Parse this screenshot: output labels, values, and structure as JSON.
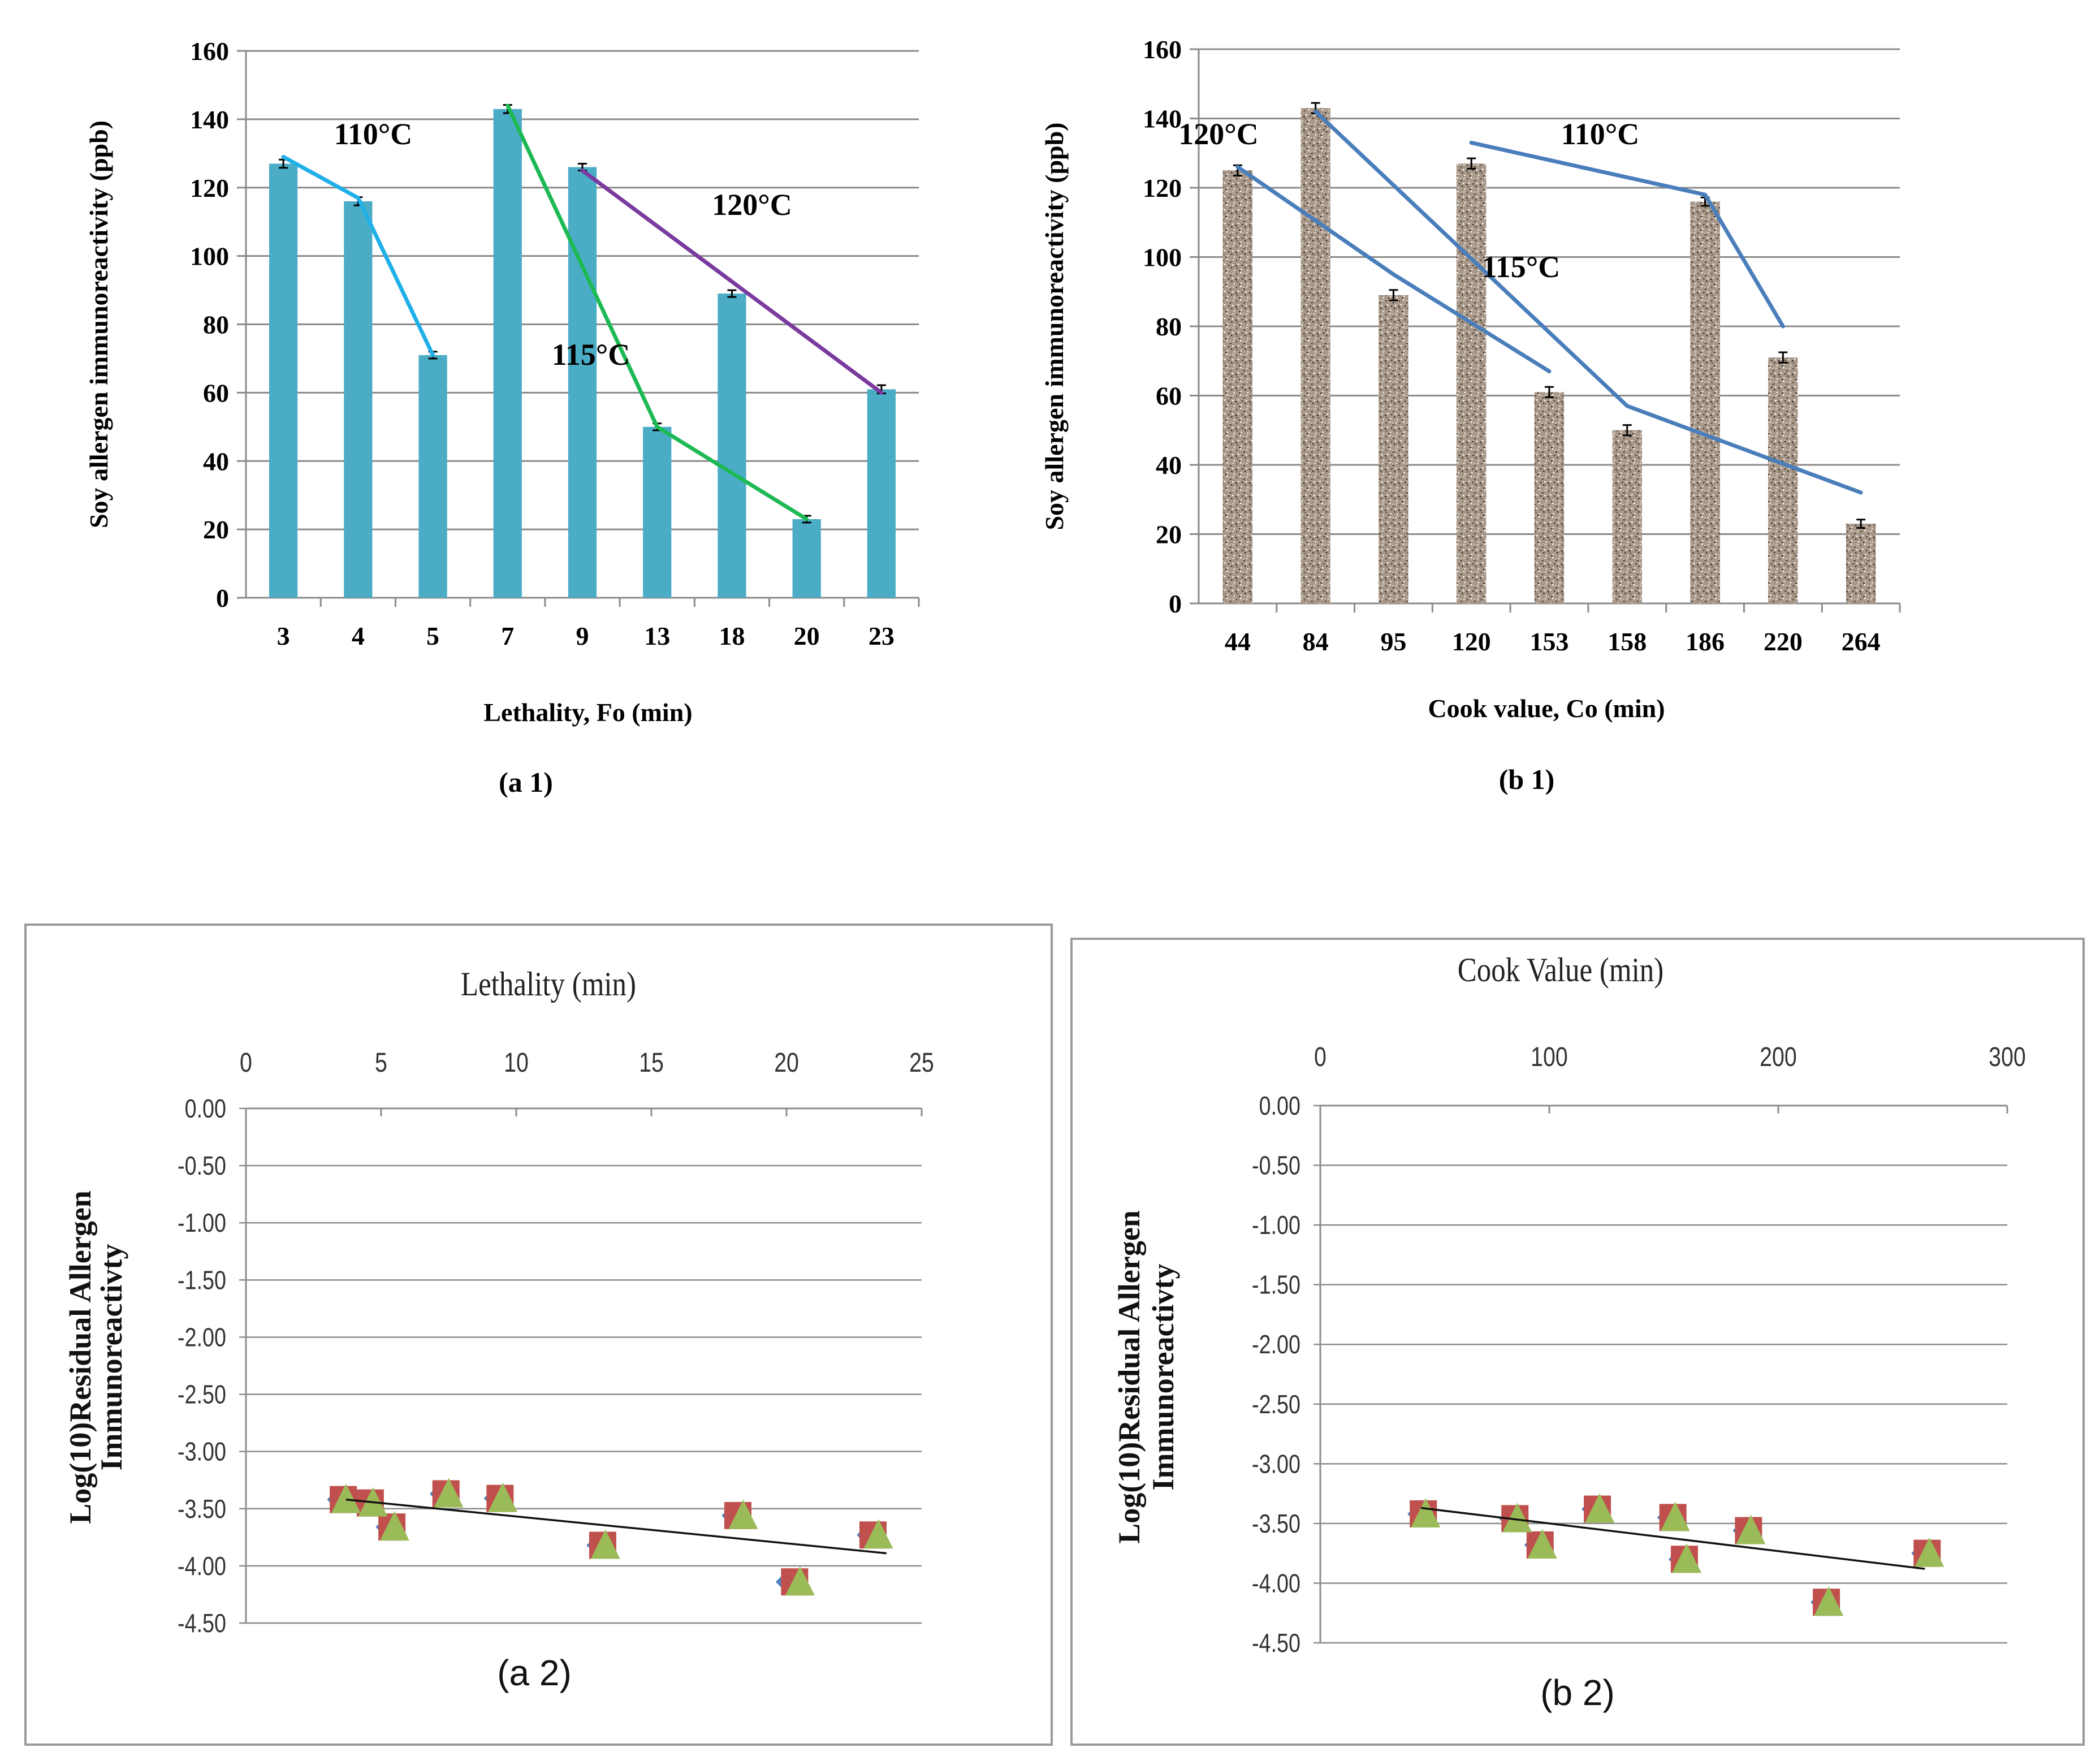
{
  "chart_data": [
    {
      "id": "a1",
      "type": "bar",
      "caption": "(a 1)",
      "xlabel": "Lethality, Fo (min)",
      "ylabel": "Soy allergen immunoreactivity (ppb)",
      "ylim": [
        0,
        160
      ],
      "yticks": [
        0,
        20,
        40,
        60,
        80,
        100,
        120,
        140,
        160
      ],
      "grid": true,
      "bar_color": "#4bacc6",
      "categories": [
        "3",
        "4",
        "5",
        "7",
        "9",
        "13",
        "18",
        "20",
        "23"
      ],
      "values": [
        127,
        116,
        71,
        143,
        126,
        50,
        89,
        23,
        61
      ],
      "errors": [
        1.2,
        1.2,
        1.0,
        1.2,
        1.0,
        1.0,
        1.0,
        1.0,
        1.2
      ],
      "trend_lines": [
        {
          "label": "110°C",
          "color": "#1fb0e8",
          "points": [
            [
              "3",
              129
            ],
            [
              "4",
              117
            ],
            [
              "5",
              71
            ]
          ]
        },
        {
          "label": "115°C",
          "color": "#1db954",
          "points": [
            [
              "7",
              144
            ],
            [
              "13",
              50
            ],
            [
              "20",
              23
            ]
          ]
        },
        {
          "label": "120°C",
          "color": "#7a3a9e",
          "points": [
            [
              "9",
              125
            ],
            [
              "23",
              60
            ]
          ]
        }
      ],
      "annotations": [
        "110°C",
        "120°C",
        "115°C"
      ]
    },
    {
      "id": "b1",
      "type": "bar",
      "caption": "(b 1)",
      "xlabel": "Cook value, Co (min)",
      "ylabel": "Soy allergen immunoreactivity (ppb)",
      "ylim": [
        0,
        160
      ],
      "yticks": [
        0,
        20,
        40,
        60,
        80,
        100,
        120,
        140,
        160
      ],
      "grid": true,
      "bar_color": "#a8988a",
      "categories": [
        "44",
        "84",
        "95",
        "120",
        "153",
        "158",
        "186",
        "220",
        "264"
      ],
      "values": [
        125,
        143,
        89,
        127,
        61,
        50,
        116,
        71,
        23
      ],
      "errors": [
        1.5,
        1.5,
        1.5,
        1.5,
        1.5,
        1.5,
        1.2,
        1.5,
        1.2
      ],
      "trend_lines": [
        {
          "label": "120°C",
          "color": "#4a7ebb",
          "points": [
            [
              "44",
              126
            ],
            [
              "95",
              95
            ],
            [
              "153",
              67
            ]
          ]
        },
        {
          "label": "115°C",
          "color": "#4a7ebb",
          "points": [
            [
              "84",
              142
            ],
            [
              "158",
              57
            ],
            [
              "264",
              32
            ]
          ]
        },
        {
          "label": "110°C",
          "color": "#4a7ebb",
          "points": [
            [
              "120",
              133
            ],
            [
              "186",
              118
            ],
            [
              "220",
              80
            ]
          ]
        }
      ],
      "annotations": [
        "120°C",
        "110°C",
        "115°C"
      ]
    },
    {
      "id": "a2",
      "type": "scatter",
      "caption": "(a 2)",
      "xlabel": "Lethality (min)",
      "ylabel_lines": [
        "Log(10)Residual Allergen",
        "Immunoreactivty"
      ],
      "xlim": [
        0,
        25
      ],
      "xticks": [
        0,
        5,
        10,
        15,
        20,
        25
      ],
      "ylim": [
        -4.5,
        0
      ],
      "yticks": [
        "0.00",
        "-0.50",
        "-1.00",
        "-1.50",
        "-2.00",
        "-2.50",
        "-3.00",
        "-3.50",
        "-4.00",
        "-4.50"
      ],
      "grid": true,
      "series": [
        {
          "name": "blue",
          "marker": "diamond",
          "color": "#4f81bd",
          "points": [
            [
              3.5,
              -3.42
            ],
            [
              4.5,
              -3.45
            ],
            [
              5.3,
              -3.66
            ],
            [
              7.3,
              -3.37
            ],
            [
              9.3,
              -3.41
            ],
            [
              13.1,
              -3.82
            ],
            [
              18.1,
              -3.56
            ],
            [
              20.1,
              -4.14
            ],
            [
              23.1,
              -3.73
            ]
          ]
        },
        {
          "name": "red",
          "marker": "square",
          "color": "#c0504d",
          "points": [
            [
              3.6,
              -3.42
            ],
            [
              4.6,
              -3.45
            ],
            [
              5.4,
              -3.66
            ],
            [
              7.4,
              -3.37
            ],
            [
              9.4,
              -3.41
            ],
            [
              13.2,
              -3.82
            ],
            [
              18.2,
              -3.56
            ],
            [
              20.3,
              -4.14
            ],
            [
              23.2,
              -3.73
            ]
          ]
        },
        {
          "name": "green",
          "marker": "triangle",
          "color": "#9bbb59",
          "points": [
            [
              3.7,
              -3.42
            ],
            [
              4.7,
              -3.45
            ],
            [
              5.5,
              -3.66
            ],
            [
              7.5,
              -3.37
            ],
            [
              9.5,
              -3.41
            ],
            [
              13.3,
              -3.82
            ],
            [
              18.4,
              -3.56
            ],
            [
              20.5,
              -4.14
            ],
            [
              23.4,
              -3.73
            ]
          ]
        }
      ],
      "trend": [
        [
          3.7,
          -3.42
        ],
        [
          23.7,
          -3.89
        ]
      ]
    },
    {
      "id": "b2",
      "type": "scatter",
      "caption": "(b 2)",
      "xlabel": "Cook Value (min)",
      "ylabel_lines": [
        "Log(10)Residual Allergen",
        "Immunoreactivty"
      ],
      "xlim": [
        0,
        300
      ],
      "xticks": [
        0,
        100,
        200,
        300
      ],
      "ylim": [
        -4.5,
        0
      ],
      "yticks": [
        "0.00",
        "-0.50",
        "-1.00",
        "-1.50",
        "-2.00",
        "-2.50",
        "-3.00",
        "-3.50",
        "-4.00",
        "-4.50"
      ],
      "grid": true,
      "series": [
        {
          "name": "blue",
          "marker": "diamond",
          "color": "#4f81bd",
          "points": [
            [
              44,
              -3.42
            ],
            [
              84,
              -3.46
            ],
            [
              95,
              -3.68
            ],
            [
              120,
              -3.38
            ],
            [
              153,
              -3.45
            ],
            [
              158,
              -3.8
            ],
            [
              186,
              -3.56
            ],
            [
              220,
              -4.16
            ],
            [
              264,
              -3.75
            ]
          ]
        },
        {
          "name": "red",
          "marker": "square",
          "color": "#c0504d",
          "points": [
            [
              45,
              -3.42
            ],
            [
              85,
              -3.46
            ],
            [
              96,
              -3.68
            ],
            [
              121,
              -3.38
            ],
            [
              154,
              -3.45
            ],
            [
              159,
              -3.8
            ],
            [
              187,
              -3.56
            ],
            [
              221,
              -4.16
            ],
            [
              265,
              -3.75
            ]
          ]
        },
        {
          "name": "green",
          "marker": "triangle",
          "color": "#9bbb59",
          "points": [
            [
              46,
              -3.42
            ],
            [
              86,
              -3.46
            ],
            [
              97,
              -3.68
            ],
            [
              122,
              -3.38
            ],
            [
              155,
              -3.45
            ],
            [
              160,
              -3.8
            ],
            [
              188,
              -3.56
            ],
            [
              222,
              -4.16
            ],
            [
              266,
              -3.75
            ]
          ]
        }
      ],
      "trend": [
        [
          44,
          -3.37
        ],
        [
          264,
          -3.88
        ]
      ]
    }
  ]
}
